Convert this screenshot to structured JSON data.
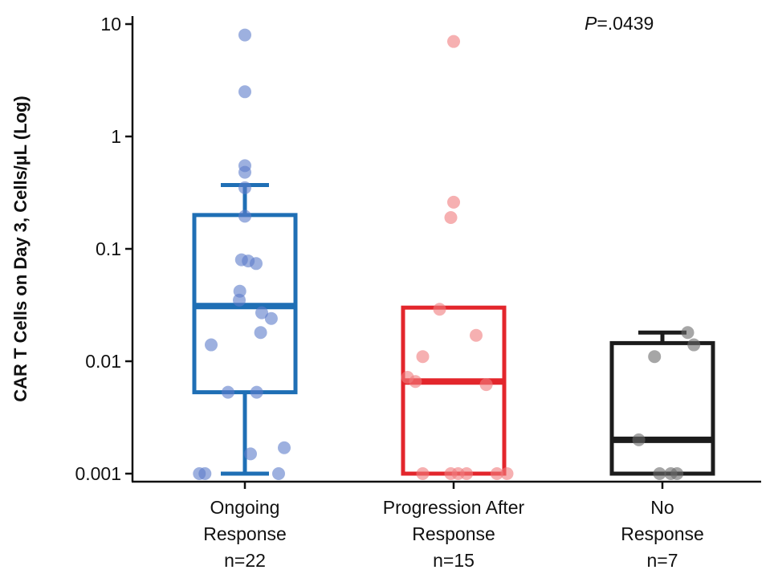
{
  "chart_data": {
    "type": "box",
    "ylabel": "CAR T Cells on Day 3, Cells/µL (Log)",
    "yscale": "log",
    "ylim": [
      0.001,
      10
    ],
    "yticks": [
      10,
      1,
      0.1,
      0.01,
      0.001
    ],
    "ytick_labels": [
      "10",
      "1",
      "0.1",
      "0.01",
      "0.001"
    ],
    "annotation": {
      "italic": "P",
      "rest": "=.0439"
    },
    "groups": [
      {
        "label_lines": [
          "Ongoing",
          "Response",
          "n=22"
        ],
        "color": "#1f6fb5",
        "point_color": "#5b7cc9",
        "box": {
          "q1": 0.0053,
          "median": 0.031,
          "q3": 0.2,
          "whisker_low": 0.001,
          "whisker_high": 0.37
        },
        "points": [
          8.0,
          2.5,
          0.55,
          0.48,
          0.35,
          0.195,
          0.08,
          0.078,
          0.074,
          0.042,
          0.035,
          0.027,
          0.024,
          0.018,
          0.014,
          0.0053,
          0.0053,
          0.0017,
          0.0015,
          0.001,
          0.001,
          0.001
        ],
        "jitter": [
          0.0,
          0.0,
          0.0,
          0.0,
          0.0,
          0.0,
          -0.06,
          0.06,
          0.2,
          -0.09,
          -0.1,
          0.3,
          0.47,
          0.28,
          -0.6,
          -0.3,
          0.21,
          0.7,
          0.1,
          -0.81,
          -0.71,
          0.6
        ]
      },
      {
        "label_lines": [
          "Progression After",
          "Response",
          "n=15"
        ],
        "color": "#e3262c",
        "point_color": "#f07b7d",
        "box": {
          "q1": 0.001,
          "median": 0.0066,
          "q3": 0.03,
          "whisker_low": 0.001,
          "whisker_high": 0.03
        },
        "points": [
          7.0,
          0.26,
          0.19,
          0.029,
          0.017,
          0.011,
          0.0072,
          0.0066,
          0.0062,
          0.001,
          0.001,
          0.001,
          0.001,
          0.001,
          0.001
        ],
        "jitter": [
          0.0,
          0.0,
          -0.05,
          -0.25,
          0.4,
          -0.55,
          -0.82,
          -0.68,
          0.58,
          -0.55,
          -0.05,
          0.08,
          0.23,
          0.77,
          0.95
        ]
      },
      {
        "label_lines": [
          "No",
          "Response",
          "n=7"
        ],
        "color": "#1c1c1c",
        "point_color": "#6a6a6a",
        "box": {
          "q1": 0.001,
          "median": 0.002,
          "q3": 0.0145,
          "whisker_low": 0.001,
          "whisker_high": 0.018
        },
        "points": [
          0.018,
          0.014,
          0.011,
          0.002,
          0.001,
          0.001,
          0.001
        ],
        "jitter": [
          0.45,
          0.56,
          -0.14,
          -0.42,
          -0.05,
          0.15,
          0.26
        ]
      }
    ]
  }
}
